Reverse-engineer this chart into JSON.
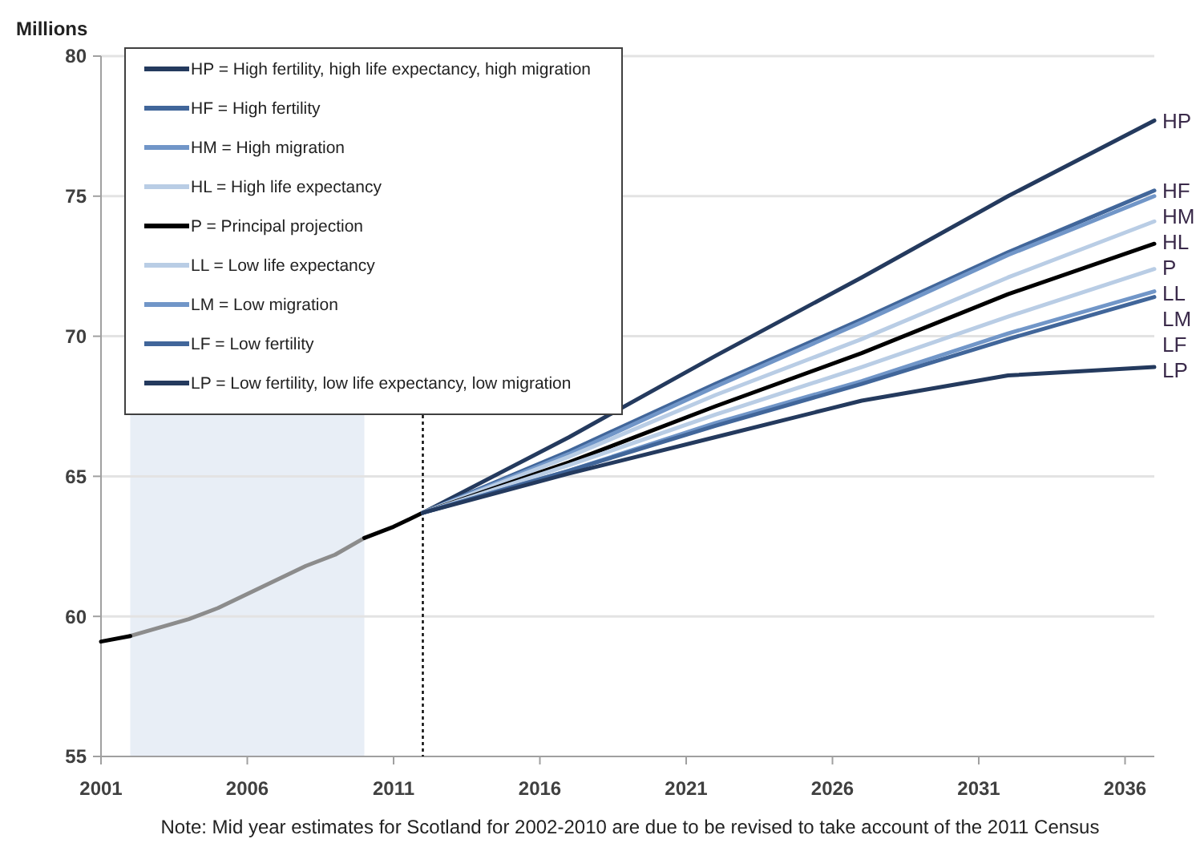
{
  "chart_data": {
    "type": "line",
    "ylabel": "Millions",
    "xlim": [
      2001,
      2037
    ],
    "xticks": [
      2001,
      2006,
      2011,
      2016,
      2021,
      2026,
      2031,
      2036
    ],
    "ylim": [
      55,
      80
    ],
    "yticks": [
      55,
      60,
      65,
      70,
      75,
      80
    ],
    "grid": "y",
    "legend": "top left",
    "series": [
      {
        "color": "#8c8c8c",
        "x": [
          2002,
          2003,
          2004,
          2005,
          2006,
          2007,
          2008,
          2009,
          2010
        ],
        "values": [
          59.3,
          59.6,
          59.9,
          60.3,
          60.8,
          61.3,
          61.8,
          62.2,
          62.8
        ]
      },
      {
        "name": "HP = High fertility, high life expectancy, high migration",
        "color": "#243a5e",
        "x": [
          2012,
          2017,
          2022,
          2027,
          2032,
          2037
        ],
        "values": [
          63.7,
          66.4,
          69.3,
          72.1,
          75.0,
          77.7
        ]
      },
      {
        "name": "HF = High fertility",
        "color": "#41669a",
        "x": [
          2012,
          2017,
          2022,
          2027,
          2032,
          2037
        ],
        "values": [
          63.7,
          65.9,
          68.3,
          70.6,
          73.0,
          75.2
        ]
      },
      {
        "name": "HM = High migration",
        "color": "#7196c8",
        "x": [
          2012,
          2017,
          2022,
          2027,
          2032,
          2037
        ],
        "values": [
          63.7,
          65.8,
          68.2,
          70.5,
          72.9,
          75.0
        ]
      },
      {
        "name": "HL = High life expectancy",
        "color": "#b9cde5",
        "x": [
          2012,
          2017,
          2022,
          2027,
          2032,
          2037
        ],
        "values": [
          63.7,
          65.7,
          67.9,
          69.9,
          72.1,
          74.1
        ]
      },
      {
        "name": "P = Principal projection",
        "color": "#000000",
        "x": [
          2001,
          2002,
          2003,
          2004,
          2005,
          2006,
          2007,
          2008,
          2009,
          2010,
          2011,
          2012,
          2017,
          2022,
          2027,
          2032,
          2037
        ],
        "values": [
          59.1,
          59.3,
          null,
          null,
          null,
          null,
          null,
          null,
          null,
          62.8,
          63.2,
          63.7,
          65.5,
          67.5,
          69.4,
          71.5,
          73.3
        ]
      },
      {
        "name": "LL = Low life expectancy",
        "color": "#b9cde5",
        "x": [
          2012,
          2017,
          2022,
          2027,
          2032,
          2037
        ],
        "values": [
          63.7,
          65.4,
          67.2,
          68.9,
          70.7,
          72.4
        ]
      },
      {
        "name": "LM = Low migration",
        "color": "#7196c8",
        "x": [
          2012,
          2017,
          2022,
          2027,
          2032,
          2037
        ],
        "values": [
          63.7,
          65.2,
          66.9,
          68.4,
          70.1,
          71.6
        ]
      },
      {
        "name": "LF = Low fertility",
        "color": "#41669a",
        "x": [
          2012,
          2017,
          2022,
          2027,
          2032,
          2037
        ],
        "values": [
          63.7,
          65.2,
          66.8,
          68.3,
          69.9,
          71.4
        ]
      },
      {
        "name": "LP = Low fertility, low life expectancy, low migration",
        "color": "#243a5e",
        "x": [
          2012,
          2017,
          2022,
          2027,
          2032,
          2037
        ],
        "values": [
          63.7,
          65.1,
          66.4,
          67.7,
          68.6,
          68.9
        ]
      }
    ],
    "ref_lines": [
      {
        "axis": "x",
        "value": 2012,
        "color": "#000000",
        "line_style": "dotted"
      }
    ],
    "bands": [
      {
        "axis": "x",
        "from": 2002,
        "to": 2010,
        "color": "#e8eef6"
      }
    ],
    "annotations": [
      "HP",
      "HF",
      "HM",
      "HL",
      "P",
      "LL",
      "LM",
      "LF",
      "LP",
      "Note: Mid year estimates for Scotland for 2002-2010  are due to be revised to take account of the 2011 Census"
    ]
  }
}
